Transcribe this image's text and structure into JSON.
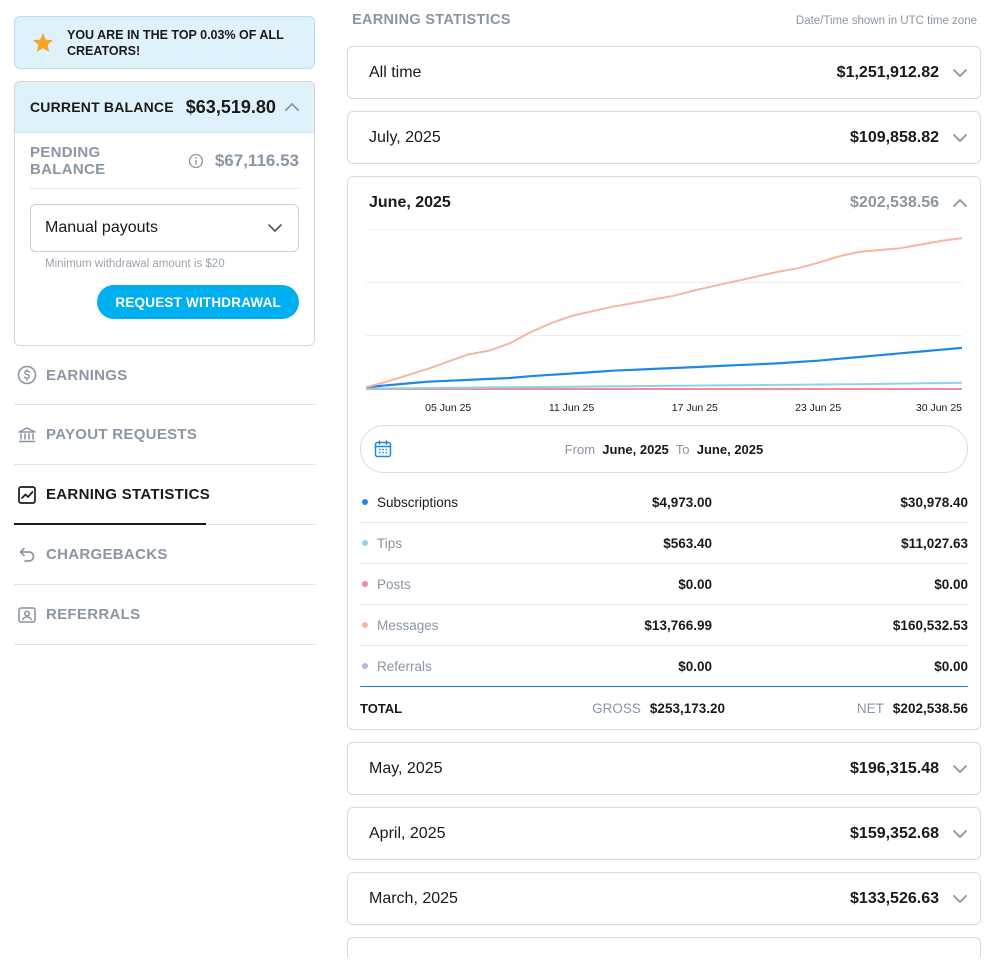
{
  "banner": {
    "text": "YOU ARE IN THE TOP 0.03% OF ALL CREATORS!"
  },
  "balance": {
    "current_label": "CURRENT BALANCE",
    "current_value": "$63,519.80",
    "pending_label": "PENDING BALANCE",
    "pending_value": "$67,116.53",
    "payout_mode": "Manual payouts",
    "min_hint": "Minimum withdrawal amount is $20",
    "withdraw_label": "REQUEST WITHDRAWAL"
  },
  "nav": [
    {
      "label": "EARNINGS",
      "icon": "dollar-circle-icon",
      "active": false
    },
    {
      "label": "PAYOUT REQUESTS",
      "icon": "bank-icon",
      "active": false
    },
    {
      "label": "EARNING STATISTICS",
      "icon": "chart-trend-icon",
      "active": true
    },
    {
      "label": "CHARGEBACKS",
      "icon": "undo-icon",
      "active": false
    },
    {
      "label": "REFERRALS",
      "icon": "person-card-icon",
      "active": false
    }
  ],
  "main": {
    "title": "EARNING STATISTICS",
    "timezone_note": "Date/Time shown in UTC time zone",
    "periods_top": [
      {
        "name": "All time",
        "amount": "$1,251,912.82"
      },
      {
        "name": "July, 2025",
        "amount": "$109,858.82"
      }
    ],
    "expanded": {
      "name": "June, 2025",
      "amount": "$202,538.56",
      "range": {
        "from_label": "From",
        "from": "June, 2025",
        "to_label": "To",
        "to": "June, 2025"
      },
      "rows": [
        {
          "label": "Subscriptions",
          "gross": "$4,973.00",
          "net": "$30,978.40",
          "color": "#1e88e5",
          "dark": true
        },
        {
          "label": "Tips",
          "gross": "$563.40",
          "net": "$11,027.63",
          "color": "#8fd3ea",
          "dark": false
        },
        {
          "label": "Posts",
          "gross": "$0.00",
          "net": "$0.00",
          "color": "#f08aa0",
          "dark": false
        },
        {
          "label": "Messages",
          "gross": "$13,766.99",
          "net": "$160,532.53",
          "color": "#f8b6a0",
          "dark": false
        },
        {
          "label": "Referrals",
          "gross": "$0.00",
          "net": "$0.00",
          "color": "#b8b0e0",
          "dark": false
        }
      ],
      "total": {
        "label": "TOTAL",
        "gross_label": "GROSS",
        "gross": "$253,173.20",
        "net_label": "NET",
        "net": "$202,538.56"
      }
    },
    "periods_bottom": [
      {
        "name": "May, 2025",
        "amount": "$196,315.48"
      },
      {
        "name": "April, 2025",
        "amount": "$159,352.68"
      },
      {
        "name": "March, 2025",
        "amount": "$133,526.63"
      }
    ]
  },
  "chart_data": {
    "type": "line",
    "x_ticks": [
      "05 Jun 25",
      "11 Jun 25",
      "17 Jun 25",
      "23 Jun 25",
      "30 Jun 25"
    ],
    "x": [
      1,
      2,
      3,
      4,
      5,
      6,
      7,
      8,
      9,
      10,
      11,
      12,
      13,
      14,
      15,
      16,
      17,
      18,
      19,
      20,
      21,
      22,
      23,
      24,
      25,
      26,
      27,
      28,
      29,
      30
    ],
    "ylim": [
      0,
      175000
    ],
    "grid": true,
    "series": [
      {
        "name": "Messages",
        "color": "#f8b6a0",
        "values": [
          2000,
          8000,
          15000,
          22000,
          30000,
          38000,
          42000,
          50000,
          62000,
          72000,
          80000,
          85000,
          90000,
          94000,
          98000,
          102000,
          108000,
          113000,
          118000,
          123000,
          128000,
          132000,
          138000,
          145000,
          150000,
          152000,
          154000,
          158000,
          162000,
          165000
        ]
      },
      {
        "name": "Subscriptions",
        "color": "#1e88e5",
        "values": [
          2000,
          4000,
          6000,
          8000,
          9000,
          10000,
          11000,
          12000,
          14000,
          15500,
          17000,
          18500,
          20000,
          21000,
          22000,
          23000,
          24000,
          25000,
          26000,
          27000,
          28000,
          29500,
          31000,
          33000,
          35000,
          37000,
          39000,
          41000,
          43000,
          45000
        ]
      },
      {
        "name": "Tips",
        "color": "#8fd3ea",
        "values": [
          500,
          700,
          900,
          1100,
          1300,
          1500,
          1700,
          1900,
          2100,
          2300,
          2500,
          2700,
          2900,
          3100,
          3300,
          3500,
          3700,
          3900,
          4100,
          4300,
          4500,
          4700,
          4900,
          5100,
          5300,
          5600,
          5900,
          6200,
          6500,
          6800
        ]
      },
      {
        "name": "Posts",
        "color": "#f08aa0",
        "values": [
          0,
          0,
          0,
          0,
          0,
          0,
          0,
          0,
          0,
          0,
          0,
          0,
          0,
          0,
          0,
          0,
          0,
          0,
          0,
          0,
          0,
          0,
          0,
          0,
          0,
          0,
          0,
          0,
          0,
          0
        ]
      },
      {
        "name": "Referrals",
        "color": "#b8b0e0",
        "values": [
          0,
          0,
          0,
          0,
          0,
          0,
          0,
          0,
          0,
          0,
          0,
          0,
          0,
          0,
          0,
          0,
          0,
          0,
          0,
          0,
          0,
          0,
          0,
          0,
          0,
          0,
          0,
          0,
          0,
          0
        ]
      }
    ]
  }
}
